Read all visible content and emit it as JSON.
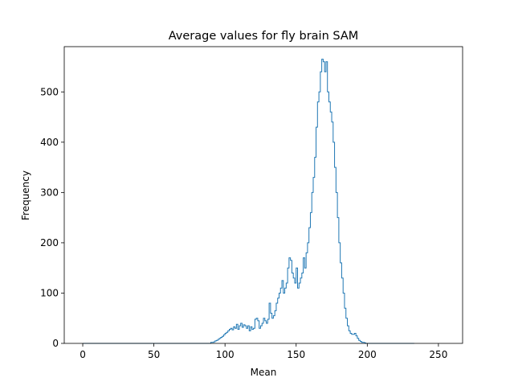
{
  "chart_data": {
    "type": "histogram",
    "title": "Average values for fly brain SAM",
    "xlabel": "Mean",
    "ylabel": "Frequency",
    "xlim": [
      -13,
      267
    ],
    "ylim": [
      0,
      590
    ],
    "xticks": [
      0,
      50,
      100,
      150,
      200,
      250
    ],
    "yticks": [
      0,
      100,
      200,
      300,
      400,
      500
    ],
    "grid": false,
    "legend": "none",
    "series": [
      {
        "color": "#1f77b4",
        "style": "step",
        "x_start": 0,
        "bin_width": 1,
        "counts": [
          0,
          0,
          0,
          0,
          0,
          0,
          0,
          0,
          0,
          0,
          0,
          0,
          0,
          0,
          0,
          0,
          0,
          0,
          0,
          0,
          0,
          0,
          0,
          0,
          0,
          0,
          0,
          0,
          0,
          0,
          0,
          0,
          0,
          0,
          0,
          0,
          0,
          0,
          0,
          0,
          0,
          0,
          0,
          0,
          0,
          0,
          0,
          0,
          0,
          0,
          0,
          0,
          0,
          0,
          0,
          0,
          0,
          0,
          0,
          0,
          0,
          0,
          0,
          0,
          0,
          0,
          0,
          0,
          0,
          0,
          0,
          0,
          0,
          0,
          0,
          0,
          0,
          0,
          0,
          0,
          0,
          0,
          0,
          0,
          0,
          0,
          0,
          0,
          0,
          0,
          2,
          2,
          3,
          5,
          6,
          8,
          10,
          12,
          14,
          17,
          20,
          22,
          25,
          28,
          30,
          27,
          33,
          30,
          38,
          28,
          35,
          40,
          32,
          37,
          35,
          30,
          35,
          25,
          33,
          28,
          30,
          48,
          50,
          45,
          30,
          35,
          40,
          50,
          45,
          40,
          48,
          80,
          60,
          50,
          55,
          65,
          80,
          90,
          100,
          110,
          125,
          100,
          110,
          120,
          150,
          170,
          165,
          140,
          130,
          120,
          150,
          110,
          120,
          130,
          140,
          170,
          150,
          180,
          200,
          230,
          260,
          300,
          330,
          370,
          430,
          480,
          500,
          540,
          565,
          560,
          540,
          560,
          500,
          480,
          460,
          440,
          400,
          350,
          300,
          250,
          200,
          160,
          130,
          100,
          70,
          50,
          35,
          25,
          20,
          18,
          18,
          20,
          15,
          10,
          6,
          4,
          2,
          2,
          1,
          0,
          0,
          0,
          0,
          0,
          0,
          0,
          0,
          0,
          0,
          0,
          0,
          0,
          0,
          0,
          0,
          0,
          0,
          0,
          0,
          0,
          0,
          0,
          0,
          0,
          0,
          0,
          0,
          0,
          0,
          0,
          0,
          0,
          0
        ]
      }
    ]
  }
}
